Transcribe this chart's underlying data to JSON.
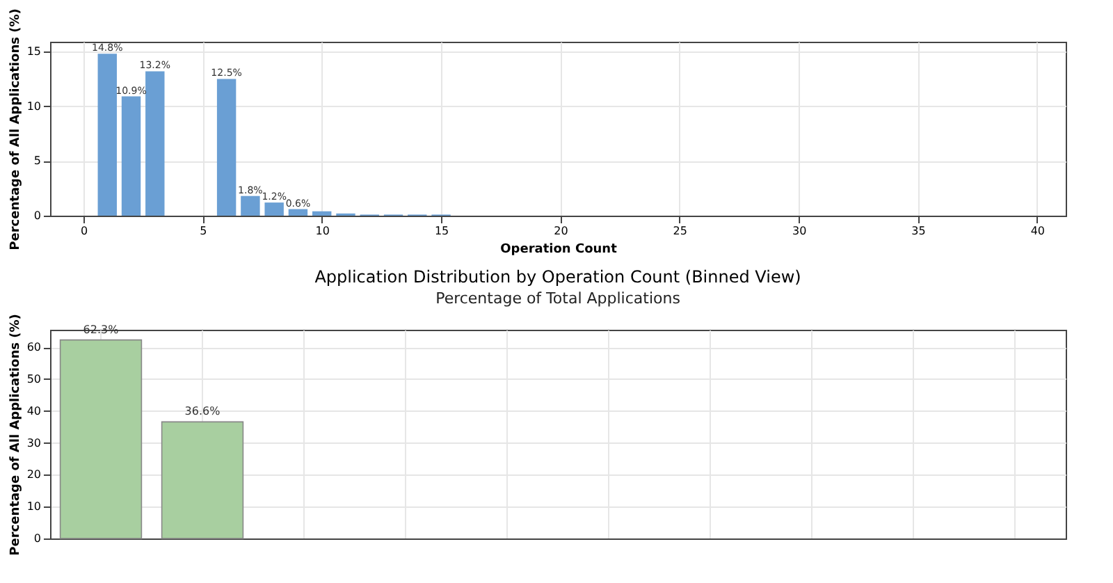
{
  "chart_data": [
    {
      "type": "bar",
      "xlabel": "Operation Count",
      "ylabel": "Percentage of All Applications (%)",
      "x": [
        1,
        2,
        3,
        4,
        5,
        6,
        7,
        8,
        9,
        10,
        11,
        12,
        13,
        14,
        15
      ],
      "values": [
        14.8,
        10.9,
        13.2,
        null,
        null,
        12.5,
        1.8,
        1.2,
        0.6,
        0.4,
        0.2,
        0.1,
        0.1,
        0.1,
        0.1
      ],
      "value_labels": [
        "14.8%",
        "10.9%",
        "13.2%",
        null,
        null,
        "12.5%",
        "1.8%",
        "1.2%",
        "0.6%",
        null,
        null,
        null,
        null,
        null,
        null
      ],
      "color": "#6a9fd4",
      "xlim": [
        -1.4,
        41.2
      ],
      "ylim": [
        0,
        15.9
      ],
      "xticks": [
        0,
        5,
        10,
        15,
        20,
        25,
        30,
        35,
        40
      ],
      "yticks": [
        0,
        5,
        10,
        15
      ],
      "grid": true
    },
    {
      "type": "bar",
      "title": "Application Distribution by Operation Count (Binned View)",
      "subtitle": "Percentage of Total Applications",
      "ylabel": "Percentage of All Applications (%)",
      "categories": [
        null,
        null,
        null,
        null,
        null,
        null,
        null,
        null,
        null,
        null
      ],
      "values": [
        62.3,
        36.6,
        null,
        null,
        null,
        null,
        null,
        null,
        null,
        null
      ],
      "value_labels": [
        "62.3%",
        "36.6%",
        null,
        null,
        null,
        null,
        null,
        null,
        null,
        null
      ],
      "color": "#a8cfa0",
      "ylim": [
        0,
        65.5
      ],
      "yticks": [
        0,
        10,
        20,
        30,
        40,
        50,
        60
      ],
      "grid": true
    }
  ]
}
